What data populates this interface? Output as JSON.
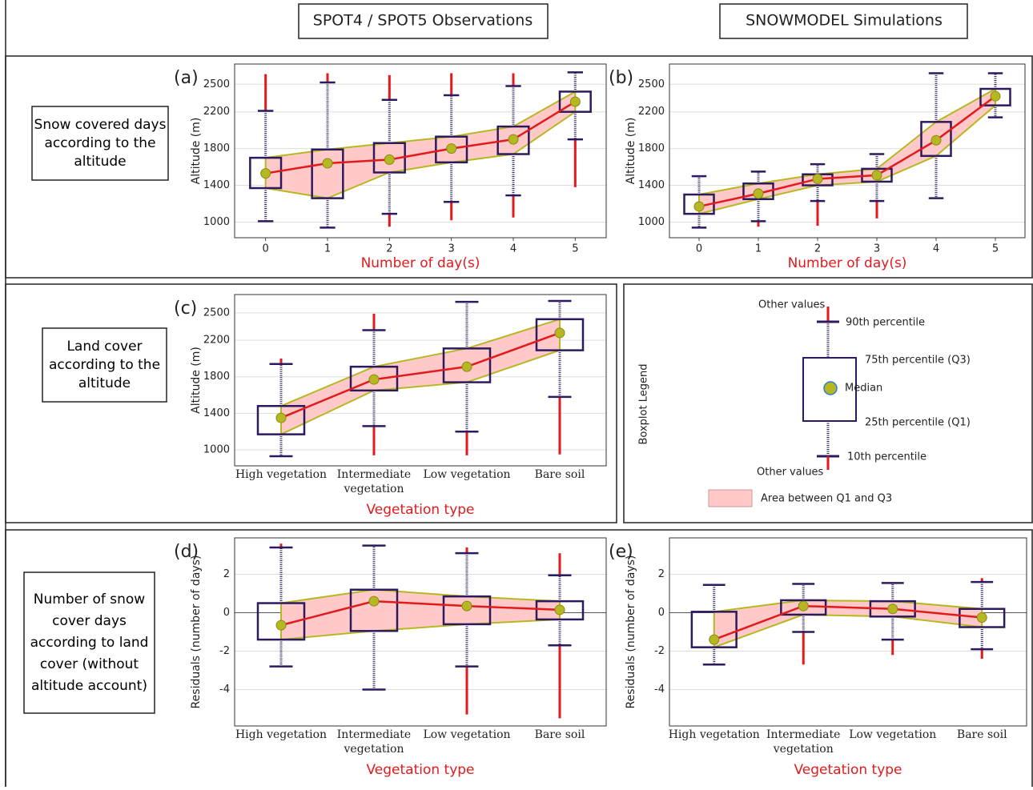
{
  "column_headers": [
    "SPOT4 / SPOT5 Observations",
    "SNOWMODEL Simulations"
  ],
  "row_labels": [
    "Snow covered days according to the altitude",
    "Land cover according to the altitude",
    "Number of snow cover days according to land cover (without altitude account)"
  ],
  "legend": {
    "title": "Boxplot Legend",
    "other_top": "Other values",
    "p90": "90th percentile",
    "q3": "75th percentile (Q3)",
    "median": "Median",
    "q1": "25th percentile (Q1)",
    "p10": "10th percentile",
    "other_bottom": "Other values",
    "area": "Area between Q1 and Q3"
  },
  "chart_data": [
    {
      "type": "box",
      "panel_label": "(a)",
      "xlabel": "Number of day(s)",
      "ylabel": "Altitude (m)",
      "x": [
        0,
        1,
        2,
        3,
        4,
        5
      ],
      "xlim": [
        -0.5,
        5.5
      ],
      "xticks": [
        0,
        1,
        2,
        3,
        4,
        5
      ],
      "ylim": [
        830,
        2720
      ],
      "yticks": [
        1000,
        1400,
        1800,
        2200,
        2500
      ],
      "grid": true,
      "min": [
        1010,
        940,
        950,
        1020,
        1050,
        1380
      ],
      "p10": [
        1010,
        940,
        1090,
        1220,
        1290,
        1900
      ],
      "q1": [
        1370,
        1260,
        1540,
        1650,
        1740,
        2200
      ],
      "median": [
        1530,
        1640,
        1680,
        1800,
        1900,
        2310
      ],
      "q3": [
        1700,
        1790,
        1860,
        1930,
        2040,
        2420
      ],
      "p90": [
        2210,
        2520,
        2330,
        2380,
        2480,
        2630
      ],
      "max": [
        2610,
        2620,
        2600,
        2620,
        2620,
        2630
      ],
      "box_color": "#2d1a5e",
      "median_color": "#b5b822",
      "line_color": "#e31a1c",
      "area_color": "#ffc9c9",
      "outlier_color": "#e31a1c"
    },
    {
      "type": "box",
      "panel_label": "(b)",
      "xlabel": "Number of day(s)",
      "ylabel": "Altitude (m)",
      "x": [
        0,
        1,
        2,
        3,
        4,
        5
      ],
      "xlim": [
        -0.5,
        5.5
      ],
      "xticks": [
        0,
        1,
        2,
        3,
        4,
        5
      ],
      "ylim": [
        830,
        2720
      ],
      "yticks": [
        1000,
        1400,
        1800,
        2200,
        2500
      ],
      "grid": true,
      "min": [
        940,
        950,
        960,
        1040,
        1260,
        2140
      ],
      "p10": [
        940,
        1010,
        1230,
        1230,
        1260,
        2140
      ],
      "q1": [
        1090,
        1250,
        1400,
        1440,
        1720,
        2270
      ],
      "median": [
        1170,
        1310,
        1470,
        1510,
        1890,
        2370
      ],
      "q3": [
        1300,
        1420,
        1520,
        1580,
        2090,
        2450
      ],
      "p90": [
        1500,
        1550,
        1630,
        1740,
        2620,
        2620
      ],
      "max": [
        1500,
        1550,
        1630,
        1740,
        2620,
        2620
      ],
      "box_color": "#2d1a5e",
      "median_color": "#b5b822",
      "line_color": "#e31a1c",
      "area_color": "#ffc9c9",
      "outlier_color": "#e31a1c"
    },
    {
      "type": "box",
      "panel_label": "(c)",
      "xlabel": "Vegetation type",
      "ylabel": "Altitude (m)",
      "categories": [
        "High vegetation",
        "Intermediate vegetation",
        "Low vegetation",
        "Bare soil"
      ],
      "ylim": [
        825,
        2700
      ],
      "yticks": [
        1000,
        1400,
        1800,
        2200,
        2500
      ],
      "grid": true,
      "min": [
        930,
        940,
        940,
        950
      ],
      "p10": [
        930,
        1260,
        1200,
        1580
      ],
      "q1": [
        1170,
        1650,
        1740,
        2090
      ],
      "median": [
        1350,
        1770,
        1910,
        2280
      ],
      "q3": [
        1480,
        1910,
        2110,
        2430
      ],
      "p90": [
        1940,
        2310,
        2620,
        2630
      ],
      "max": [
        2000,
        2490,
        2620,
        2630
      ],
      "box_color": "#2d1a5e",
      "median_color": "#b5b822",
      "line_color": "#e31a1c",
      "area_color": "#ffc9c9",
      "outlier_color": "#e31a1c"
    },
    {
      "type": "box",
      "panel_label": "(d)",
      "xlabel": "Vegetation type",
      "ylabel": "Residuals (number of days)",
      "categories": [
        "High vegetation",
        "Intermediate vegetation",
        "Low vegetation",
        "Bare soil"
      ],
      "ylim": [
        -5.9,
        3.9
      ],
      "yticks": [
        -4,
        -2,
        0,
        2
      ],
      "grid": true,
      "zero_line": true,
      "min": [
        -2.8,
        -4.0,
        -5.3,
        -5.5
      ],
      "p10": [
        -2.8,
        -4.0,
        -2.8,
        -1.7
      ],
      "q1": [
        -1.4,
        -0.95,
        -0.6,
        -0.35
      ],
      "median": [
        -0.65,
        0.6,
        0.35,
        0.15
      ],
      "q3": [
        0.5,
        1.2,
        0.85,
        0.6
      ],
      "p90": [
        3.4,
        3.5,
        3.1,
        1.95
      ],
      "max": [
        3.6,
        3.5,
        3.4,
        3.1
      ],
      "box_color": "#2d1a5e",
      "median_color": "#b5b822",
      "line_color": "#e31a1c",
      "area_color": "#ffc9c9",
      "outlier_color": "#e31a1c"
    },
    {
      "type": "box",
      "panel_label": "(e)",
      "xlabel": "Vegetation type",
      "ylabel": "Residuals (number of days)",
      "categories": [
        "High vegetation",
        "Intermediate vegetation",
        "Low vegetation",
        "Bare soil"
      ],
      "ylim": [
        -5.9,
        3.9
      ],
      "yticks": [
        -4,
        -2,
        0,
        2
      ],
      "grid": true,
      "zero_line": true,
      "min": [
        -2.7,
        -2.7,
        -2.2,
        -2.4
      ],
      "p10": [
        -2.7,
        -1.0,
        -1.4,
        -1.9
      ],
      "q1": [
        -1.8,
        -0.1,
        -0.2,
        -0.75
      ],
      "median": [
        -1.4,
        0.35,
        0.2,
        -0.25
      ],
      "q3": [
        0.05,
        0.65,
        0.6,
        0.2
      ],
      "p90": [
        1.45,
        1.5,
        1.55,
        1.6
      ],
      "max": [
        1.45,
        1.5,
        1.55,
        1.8
      ],
      "box_color": "#2d1a5e",
      "median_color": "#b5b822",
      "line_color": "#e31a1c",
      "area_color": "#ffc9c9",
      "outlier_color": "#e31a1c"
    }
  ]
}
